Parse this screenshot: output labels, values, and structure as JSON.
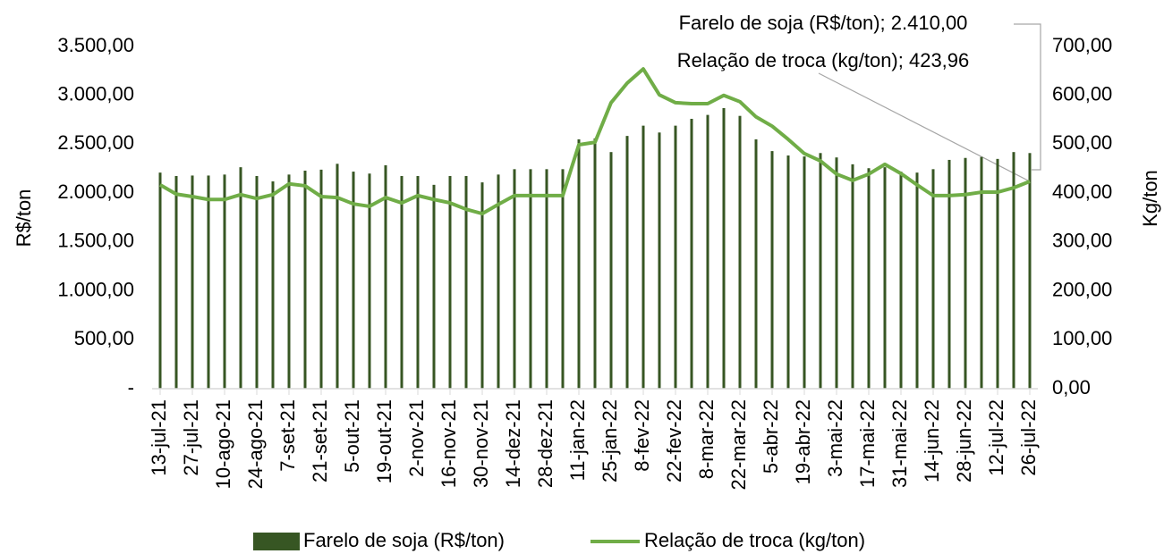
{
  "chart_data": {
    "type": "bar-line",
    "y_label": "R$/ton",
    "y2_label": "Kg/ton",
    "categories": [
      "13-jul-21",
      null,
      "27-jul-21",
      null,
      "10-ago-21",
      null,
      "24-ago-21",
      null,
      "7-set-21",
      null,
      "21-set-21",
      null,
      "5-out-21",
      null,
      "19-out-21",
      null,
      "2-nov-21",
      null,
      "16-nov-21",
      null,
      "30-nov-21",
      null,
      "14-dez-21",
      null,
      "28-dez-21",
      null,
      "11-jan-22",
      null,
      "25-jan-22",
      null,
      "8-fev-22",
      null,
      "22-fev-22",
      null,
      "8-mar-22",
      null,
      "22-mar-22",
      null,
      "5-abr-22",
      null,
      "19-abr-22",
      null,
      "3-mai-22",
      null,
      "17-mai-22",
      null,
      "31-mai-22",
      null,
      "14-jun-22",
      null,
      "28-jun-22",
      null,
      "12-jul-22",
      null,
      "26-jul-22"
    ],
    "series": [
      {
        "name": "Farelo de soja (R$/ton)",
        "color": "#375623",
        "type": "bar",
        "values": [
          2210,
          2175,
          2180,
          2180,
          2190,
          2265,
          2175,
          2120,
          2190,
          2230,
          2240,
          2300,
          2220,
          2200,
          2285,
          2175,
          2175,
          2085,
          2175,
          2175,
          2110,
          2190,
          2245,
          2245,
          2245,
          2245,
          2550,
          2560,
          2420,
          2585,
          2690,
          2620,
          2690,
          2760,
          2800,
          2870,
          2790,
          2550,
          2430,
          2385,
          2375,
          2410,
          2365,
          2295,
          2255,
          2265,
          2220,
          2210,
          2245,
          2340,
          2360,
          2370,
          2350,
          2420,
          2410
        ],
        "value_labels": [
          null,
          null,
          null,
          null,
          null,
          null,
          null,
          null,
          null,
          null,
          null,
          null,
          null,
          null,
          null,
          null,
          null,
          null,
          null,
          null,
          null,
          null,
          null,
          null,
          null,
          null,
          null,
          null,
          null,
          null,
          null,
          null,
          null,
          null,
          null,
          null,
          null,
          null,
          null,
          null,
          null,
          null,
          null,
          null,
          null,
          null,
          null,
          null,
          null,
          null,
          null,
          null,
          null,
          null,
          "Farelo de soja (R$/ton); 2.410,00"
        ]
      },
      {
        "name": "Relação de troca (kg/ton)",
        "color": "#70ad47",
        "type": "line",
        "axis": "y2",
        "values": [
          417,
          398,
          393,
          387,
          387,
          397,
          389,
          397,
          419,
          415,
          393,
          391,
          378,
          373,
          391,
          380,
          395,
          387,
          380,
          367,
          358,
          377,
          395,
          395,
          395,
          395,
          499,
          504,
          585,
          625,
          654,
          601,
          585,
          583,
          583,
          600,
          587,
          556,
          537,
          510,
          481,
          466,
          439,
          426,
          439,
          459,
          440,
          417,
          395,
          395,
          397,
          402,
          402,
          411,
          423.96
        ],
        "value_labels": [
          null,
          null,
          null,
          null,
          null,
          null,
          null,
          null,
          null,
          null,
          null,
          null,
          null,
          null,
          null,
          null,
          null,
          null,
          null,
          null,
          null,
          null,
          null,
          null,
          null,
          null,
          null,
          null,
          null,
          null,
          null,
          null,
          null,
          null,
          null,
          null,
          null,
          null,
          null,
          null,
          null,
          null,
          null,
          null,
          null,
          null,
          null,
          null,
          null,
          null,
          null,
          null,
          null,
          null,
          "Relação de troca (kg/ton); 423,96"
        ]
      }
    ],
    "ylim": [
      0,
      3500
    ],
    "yticks": [
      {
        "value": 0,
        "label": "-"
      },
      {
        "value": 500,
        "label": "500,00"
      },
      {
        "value": 1000,
        "label": "1.000,00"
      },
      {
        "value": 1500,
        "label": "1.500,00"
      },
      {
        "value": 2000,
        "label": "2.000,00"
      },
      {
        "value": 2500,
        "label": "2.500,00"
      },
      {
        "value": 3000,
        "label": "3.000,00"
      },
      {
        "value": 3500,
        "label": "3.500,00"
      }
    ],
    "y2lim": [
      0,
      700
    ],
    "y2ticks": [
      {
        "value": 0,
        "label": "0,00"
      },
      {
        "value": 100,
        "label": "100,00"
      },
      {
        "value": 200,
        "label": "200,00"
      },
      {
        "value": 300,
        "label": "300,00"
      },
      {
        "value": 400,
        "label": "400,00"
      },
      {
        "value": 500,
        "label": "500,00"
      },
      {
        "value": 600,
        "label": "600,00"
      },
      {
        "value": 700,
        "label": "700,00"
      }
    ],
    "legend": "bottom"
  }
}
